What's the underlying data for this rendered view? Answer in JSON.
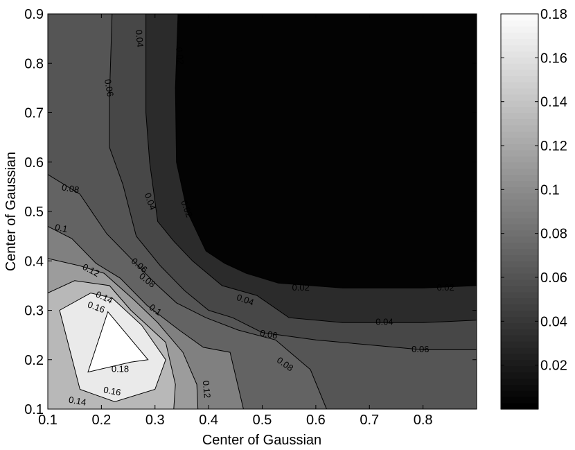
{
  "chart_data": {
    "type": "contour",
    "colormap": "gray",
    "grid": false,
    "legend": "colorbar-right",
    "xlabel": "Center of Gaussian",
    "ylabel": "Center of Gaussian",
    "xlim": [
      0.1,
      0.9
    ],
    "ylim": [
      0.1,
      0.9
    ],
    "x_ticks": [
      "0.1",
      "0.2",
      "0.3",
      "0.4",
      "0.5",
      "0.6",
      "0.7",
      "0.8"
    ],
    "y_ticks": [
      "0.1",
      "0.2",
      "0.3",
      "0.4",
      "0.5",
      "0.6",
      "0.7",
      "0.8",
      "0.9"
    ],
    "colorbar": {
      "range": [
        0.0,
        0.18
      ],
      "ticks": [
        "0.02",
        "0.04",
        "0.06",
        "0.08",
        "0.1",
        "0.12",
        "0.14",
        "0.16",
        "0.18"
      ]
    },
    "levels": [
      0.02,
      0.04,
      0.06,
      0.08,
      0.1,
      0.12,
      0.14,
      0.16,
      0.18
    ],
    "contours": [
      {
        "level": 0.18,
        "points": [
          [
            0.212,
            0.297
          ],
          [
            0.287,
            0.2
          ],
          [
            0.255,
            0.195
          ],
          [
            0.175,
            0.175
          ]
        ]
      },
      {
        "level": 0.16,
        "points": [
          [
            0.122,
            0.3
          ],
          [
            0.18,
            0.335
          ],
          [
            0.22,
            0.325
          ],
          [
            0.275,
            0.27
          ],
          [
            0.32,
            0.2
          ],
          [
            0.3,
            0.14
          ],
          [
            0.225,
            0.115
          ],
          [
            0.16,
            0.14
          ]
        ]
      },
      {
        "level": 0.14,
        "points": [
          [
            0.1,
            0.335
          ],
          [
            0.15,
            0.36
          ],
          [
            0.215,
            0.35
          ],
          [
            0.255,
            0.3
          ],
          [
            0.32,
            0.235
          ],
          [
            0.338,
            0.15
          ],
          [
            0.335,
            0.1
          ]
        ]
      },
      {
        "level": 0.12,
        "points": [
          [
            0.1,
            0.405
          ],
          [
            0.16,
            0.39
          ],
          [
            0.205,
            0.375
          ],
          [
            0.262,
            0.32
          ],
          [
            0.305,
            0.275
          ],
          [
            0.352,
            0.215
          ],
          [
            0.378,
            0.15
          ],
          [
            0.38,
            0.1
          ]
        ]
      },
      {
        "level": 0.1,
        "points": [
          [
            0.1,
            0.47
          ],
          [
            0.145,
            0.445
          ],
          [
            0.19,
            0.395
          ],
          [
            0.235,
            0.365
          ],
          [
            0.285,
            0.31
          ],
          [
            0.345,
            0.26
          ],
          [
            0.39,
            0.225
          ],
          [
            0.44,
            0.215
          ],
          [
            0.465,
            0.1
          ]
        ]
      },
      {
        "level": 0.08,
        "points": [
          [
            0.1,
            0.575
          ],
          [
            0.16,
            0.535
          ],
          [
            0.21,
            0.455
          ],
          [
            0.255,
            0.405
          ],
          [
            0.3,
            0.355
          ],
          [
            0.34,
            0.315
          ],
          [
            0.395,
            0.285
          ],
          [
            0.455,
            0.26
          ],
          [
            0.525,
            0.24
          ],
          [
            0.59,
            0.18
          ],
          [
            0.62,
            0.1
          ]
        ]
      },
      {
        "level": 0.06,
        "points": [
          [
            0.22,
            0.9
          ],
          [
            0.215,
            0.73
          ],
          [
            0.215,
            0.63
          ],
          [
            0.24,
            0.555
          ],
          [
            0.265,
            0.45
          ],
          [
            0.31,
            0.39
          ],
          [
            0.355,
            0.34
          ],
          [
            0.4,
            0.3
          ],
          [
            0.445,
            0.285
          ],
          [
            0.5,
            0.255
          ],
          [
            0.6,
            0.24
          ],
          [
            0.7,
            0.23
          ],
          [
            0.8,
            0.22
          ],
          [
            0.9,
            0.22
          ]
        ]
      },
      {
        "level": 0.04,
        "points": [
          [
            0.283,
            0.9
          ],
          [
            0.283,
            0.7
          ],
          [
            0.29,
            0.6
          ],
          [
            0.305,
            0.48
          ],
          [
            0.335,
            0.44
          ],
          [
            0.37,
            0.4
          ],
          [
            0.425,
            0.35
          ],
          [
            0.49,
            0.33
          ],
          [
            0.55,
            0.285
          ],
          [
            0.65,
            0.275
          ],
          [
            0.8,
            0.275
          ],
          [
            0.9,
            0.28
          ]
        ]
      },
      {
        "level": 0.02,
        "points": [
          [
            0.343,
            0.9
          ],
          [
            0.338,
            0.75
          ],
          [
            0.34,
            0.6
          ],
          [
            0.36,
            0.5
          ],
          [
            0.395,
            0.42
          ],
          [
            0.43,
            0.395
          ],
          [
            0.47,
            0.375
          ],
          [
            0.53,
            0.355
          ],
          [
            0.65,
            0.345
          ],
          [
            0.8,
            0.345
          ],
          [
            0.9,
            0.35
          ]
        ]
      }
    ],
    "contour_labels": [
      {
        "text": "0.18",
        "x": 0.235,
        "y": 0.18,
        "angle": 0
      },
      {
        "text": "0.16",
        "x": 0.19,
        "y": 0.305,
        "angle": 20
      },
      {
        "text": "0.16",
        "x": 0.22,
        "y": 0.135,
        "angle": 10
      },
      {
        "text": "0.14",
        "x": 0.205,
        "y": 0.325,
        "angle": 25
      },
      {
        "text": "0.14",
        "x": 0.155,
        "y": 0.115,
        "angle": 10
      },
      {
        "text": "0.12",
        "x": 0.18,
        "y": 0.38,
        "angle": 28
      },
      {
        "text": "0.12",
        "x": 0.395,
        "y": 0.14,
        "angle": 85
      },
      {
        "text": "0.1",
        "x": 0.125,
        "y": 0.465,
        "angle": 10
      },
      {
        "text": "0.1",
        "x": 0.3,
        "y": 0.3,
        "angle": 35
      },
      {
        "text": "0.08",
        "x": 0.142,
        "y": 0.545,
        "angle": 10
      },
      {
        "text": "0.08",
        "x": 0.285,
        "y": 0.36,
        "angle": 38
      },
      {
        "text": "0.08",
        "x": 0.542,
        "y": 0.19,
        "angle": 35
      },
      {
        "text": "0.06",
        "x": 0.213,
        "y": 0.75,
        "angle": 80
      },
      {
        "text": "0.06",
        "x": 0.27,
        "y": 0.39,
        "angle": 40
      },
      {
        "text": "0.06",
        "x": 0.512,
        "y": 0.25,
        "angle": 10
      },
      {
        "text": "0.06",
        "x": 0.795,
        "y": 0.22,
        "angle": 0
      },
      {
        "text": "0.04",
        "x": 0.27,
        "y": 0.85,
        "angle": 85
      },
      {
        "text": "0.04",
        "x": 0.29,
        "y": 0.52,
        "angle": 70
      },
      {
        "text": "0.04",
        "x": 0.468,
        "y": 0.32,
        "angle": 20
      },
      {
        "text": "0.04",
        "x": 0.728,
        "y": 0.275,
        "angle": 0
      },
      {
        "text": "0.02",
        "x": 0.345,
        "y": 0.815,
        "angle": 85
      },
      {
        "text": "0.02",
        "x": 0.358,
        "y": 0.505,
        "angle": 70
      },
      {
        "text": "0.02",
        "x": 0.572,
        "y": 0.345,
        "angle": 0
      },
      {
        "text": "0.02",
        "x": 0.842,
        "y": 0.345,
        "angle": 0
      }
    ]
  }
}
